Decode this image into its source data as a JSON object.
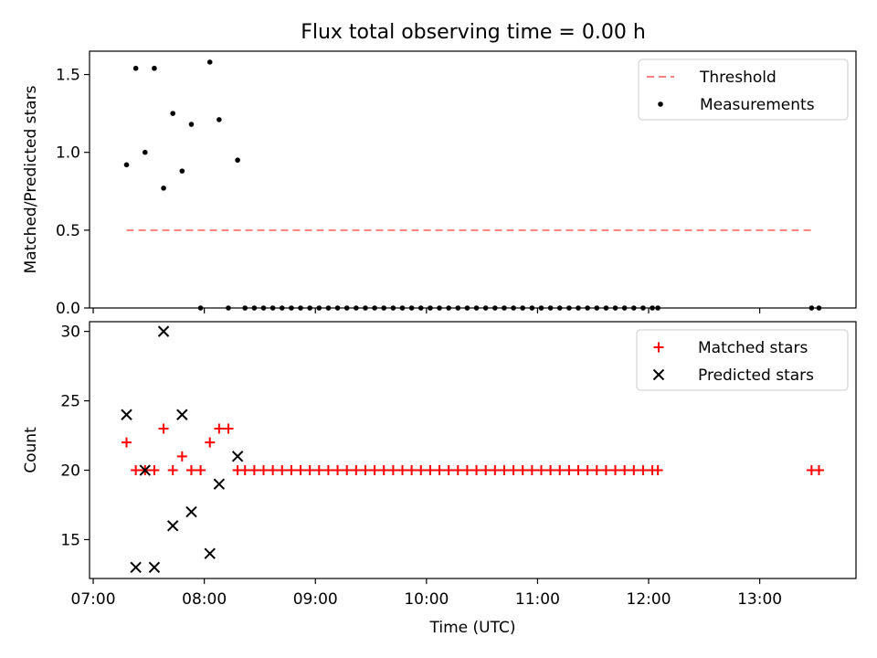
{
  "figure": {
    "title": "Flux total observing time = 0.00 h"
  },
  "chart_data": [
    {
      "type": "scatter",
      "title": "Flux total observing time = 0.00 h",
      "xlabel": "",
      "ylabel": "Matched/Predicted stars",
      "xlim": [
        "06:58",
        "13:52"
      ],
      "ylim": [
        0,
        1.65
      ],
      "yticks": [
        0.0,
        0.5,
        1.0,
        1.5
      ],
      "ytick_labels": [
        "0.0",
        "0.5",
        "1.0",
        "1.5"
      ],
      "grid": false,
      "legend_position": "top-right",
      "series": [
        {
          "name": "Threshold",
          "kind": "line",
          "style": "dashed",
          "color": "#ff7f7f",
          "x": [
            "07:18",
            "13:30"
          ],
          "y": [
            0.5,
            0.5
          ]
        },
        {
          "name": "Measurements",
          "kind": "scatter",
          "marker": "dot",
          "color": "#000000",
          "x": [
            "07:18",
            "07:23",
            "07:28",
            "07:33",
            "07:38",
            "07:43",
            "07:48",
            "07:53",
            "07:58",
            "08:03",
            "08:08",
            "08:13",
            "08:18",
            "08:22",
            "08:27",
            "08:32",
            "08:37",
            "08:42",
            "08:47",
            "08:52",
            "08:57",
            "09:02",
            "09:07",
            "09:12",
            "09:17",
            "09:22",
            "09:27",
            "09:32",
            "09:37",
            "09:42",
            "09:47",
            "09:52",
            "09:57",
            "10:02",
            "10:07",
            "10:12",
            "10:17",
            "10:22",
            "10:27",
            "10:32",
            "10:37",
            "10:42",
            "10:47",
            "10:52",
            "10:57",
            "11:02",
            "11:07",
            "11:12",
            "11:17",
            "11:22",
            "11:27",
            "11:32",
            "11:37",
            "11:42",
            "11:47",
            "11:52",
            "11:57",
            "12:02",
            "12:05",
            "13:28",
            "13:32"
          ],
          "y": [
            0.92,
            1.54,
            1.0,
            1.54,
            0.77,
            1.25,
            0.88,
            1.18,
            0,
            1.58,
            1.21,
            0,
            0.95,
            0,
            0,
            0,
            0,
            0,
            0,
            0,
            0,
            0,
            0,
            0,
            0,
            0,
            0,
            0,
            0,
            0,
            0,
            0,
            0,
            0,
            0,
            0,
            0,
            0,
            0,
            0,
            0,
            0,
            0,
            0,
            0,
            0,
            0,
            0,
            0,
            0,
            0,
            0,
            0,
            0,
            0,
            0,
            0,
            0,
            0,
            0,
            0
          ]
        }
      ]
    },
    {
      "type": "scatter",
      "title": "",
      "xlabel": "Time (UTC)",
      "ylabel": "Count",
      "xlim": [
        "06:58",
        "13:52"
      ],
      "ylim": [
        12.2,
        30.7
      ],
      "yticks": [
        15,
        20,
        25,
        30
      ],
      "ytick_labels": [
        "15",
        "20",
        "25",
        "30"
      ],
      "xticks": [
        "07:00",
        "08:00",
        "09:00",
        "10:00",
        "11:00",
        "12:00",
        "13:00"
      ],
      "xtick_labels": [
        "07:00",
        "08:00",
        "09:00",
        "10:00",
        "11:00",
        "12:00",
        "13:00"
      ],
      "grid": false,
      "legend_position": "top-right",
      "series": [
        {
          "name": "Matched stars",
          "kind": "scatter",
          "marker": "plus",
          "color": "#ff0000",
          "x": [
            "07:18",
            "07:23",
            "07:28",
            "07:33",
            "07:38",
            "07:43",
            "07:48",
            "07:53",
            "07:58",
            "08:03",
            "08:08",
            "08:13",
            "08:18",
            "08:22",
            "08:27",
            "08:32",
            "08:37",
            "08:42",
            "08:47",
            "08:52",
            "08:57",
            "09:02",
            "09:07",
            "09:12",
            "09:17",
            "09:22",
            "09:27",
            "09:32",
            "09:37",
            "09:42",
            "09:47",
            "09:52",
            "09:57",
            "10:02",
            "10:07",
            "10:12",
            "10:17",
            "10:22",
            "10:27",
            "10:32",
            "10:37",
            "10:42",
            "10:47",
            "10:52",
            "10:57",
            "11:02",
            "11:07",
            "11:12",
            "11:17",
            "11:22",
            "11:27",
            "11:32",
            "11:37",
            "11:42",
            "11:47",
            "11:52",
            "11:57",
            "12:02",
            "12:05",
            "13:28",
            "13:32"
          ],
          "y": [
            22,
            20,
            20,
            20,
            23,
            20,
            21,
            20,
            20,
            22,
            23,
            23,
            20,
            20,
            20,
            20,
            20,
            20,
            20,
            20,
            20,
            20,
            20,
            20,
            20,
            20,
            20,
            20,
            20,
            20,
            20,
            20,
            20,
            20,
            20,
            20,
            20,
            20,
            20,
            20,
            20,
            20,
            20,
            20,
            20,
            20,
            20,
            20,
            20,
            20,
            20,
            20,
            20,
            20,
            20,
            20,
            20,
            20,
            20,
            20,
            20
          ]
        },
        {
          "name": "Predicted stars",
          "kind": "scatter",
          "marker": "x",
          "color": "#000000",
          "x": [
            "07:18",
            "07:23",
            "07:28",
            "07:33",
            "07:38",
            "07:43",
            "07:48",
            "07:53",
            "08:03",
            "08:08",
            "08:18"
          ],
          "y": [
            24,
            13,
            20,
            13,
            30,
            16,
            24,
            17,
            14,
            19,
            21
          ]
        }
      ]
    }
  ]
}
